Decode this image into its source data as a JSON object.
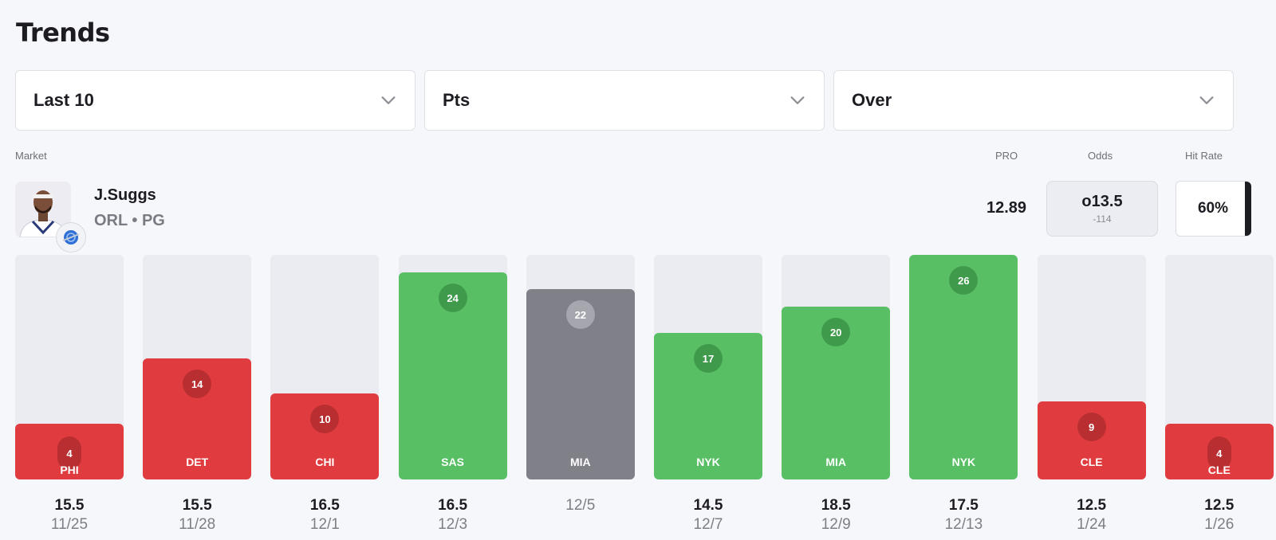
{
  "header": {
    "title": "Trends"
  },
  "filters": [
    {
      "label": "Last 10",
      "icon": "chevron-down-icon"
    },
    {
      "label": "Pts",
      "icon": "chevron-down-icon"
    },
    {
      "label": "Over",
      "icon": "chevron-down-icon"
    }
  ],
  "columns": {
    "market": "Market",
    "pro": "PRO",
    "odds": "Odds",
    "hit_rate": "Hit Rate"
  },
  "player": {
    "name": "J.Suggs",
    "meta": "ORL • PG",
    "pro": "12.89",
    "odds_line": "o13.5",
    "odds_price": "-114",
    "hit_rate": "60%"
  },
  "colors": {
    "hit": "#58bf65",
    "miss": "#e03c3f",
    "push_or_na": "#7f8088",
    "accent_bar": "#1d1e24"
  },
  "chart_data": {
    "type": "bar",
    "max_value": 26,
    "games": [
      {
        "value": 4,
        "display": "4",
        "opponent": "PHI",
        "line": "15.5",
        "date": "11/25",
        "result": "red"
      },
      {
        "value": 14,
        "display": "14",
        "opponent": "DET",
        "line": "15.5",
        "date": "11/28",
        "result": "red"
      },
      {
        "value": 10,
        "display": "10",
        "opponent": "CHI",
        "line": "16.5",
        "date": "12/1",
        "result": "red"
      },
      {
        "value": 24,
        "display": "24",
        "opponent": "SAS",
        "line": "16.5",
        "date": "12/3",
        "result": "green"
      },
      {
        "value": 22,
        "display": "22",
        "opponent": "MIA",
        "line": "",
        "date": "12/5",
        "result": "grey"
      },
      {
        "value": 17,
        "display": "17",
        "opponent": "NYK",
        "line": "14.5",
        "date": "12/7",
        "result": "green"
      },
      {
        "value": 20,
        "display": "20",
        "opponent": "MIA",
        "line": "18.5",
        "date": "12/9",
        "result": "green"
      },
      {
        "value": 26,
        "display": "26",
        "opponent": "NYK",
        "line": "17.5",
        "date": "12/13",
        "result": "green"
      },
      {
        "value": 9,
        "display": "9",
        "opponent": "CLE",
        "line": "12.5",
        "date": "1/24",
        "result": "red"
      },
      {
        "value": 4,
        "display": "4",
        "opponent": "CLE",
        "line": "12.5",
        "date": "1/26",
        "result": "red"
      }
    ]
  }
}
